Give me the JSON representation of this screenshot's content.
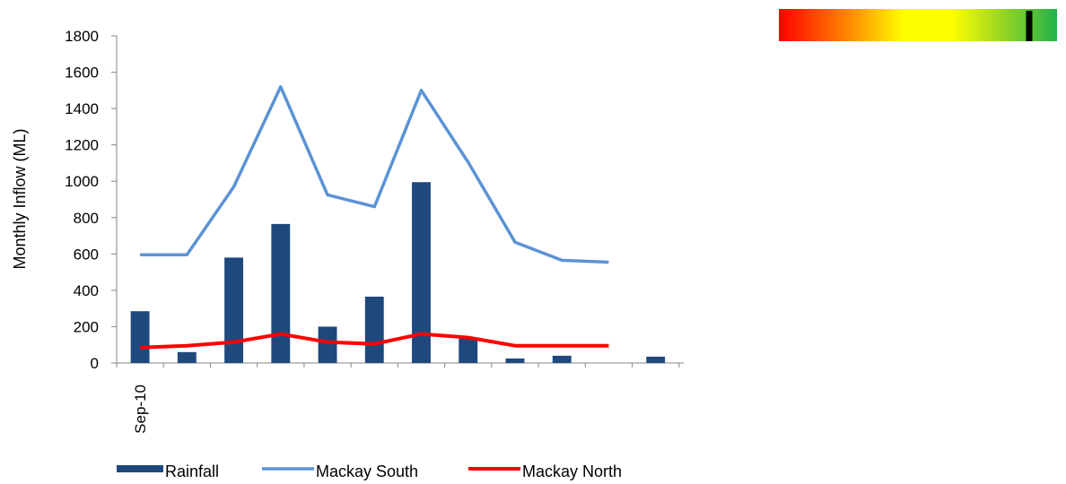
{
  "chart_data": {
    "type": "bar",
    "ylabel": "Monthly Inflow (ML)",
    "ylim": [
      0,
      1800
    ],
    "yticks": [
      0,
      200,
      400,
      600,
      800,
      1000,
      1200,
      1400,
      1600,
      1800
    ],
    "x_tick_labels": [
      "Sep-10"
    ],
    "categories_count": 12,
    "series": [
      {
        "name": "Rainfall",
        "kind": "bar",
        "color": "#1F497D",
        "values": [
          285,
          60,
          580,
          765,
          200,
          365,
          995,
          140,
          25,
          40,
          null,
          35
        ]
      },
      {
        "name": "Mackay South",
        "kind": "line",
        "color": "#5B93D5",
        "values": [
          595,
          595,
          970,
          1520,
          925,
          860,
          1500,
          1105,
          665,
          565,
          555,
          null
        ]
      },
      {
        "name": "Mackay North",
        "kind": "line",
        "color": "#FF0000",
        "values": [
          85,
          95,
          115,
          160,
          115,
          105,
          160,
          140,
          95,
          95,
          95,
          null
        ]
      }
    ],
    "grid": false,
    "legend_position": "bottom"
  },
  "indicator": {
    "colors": [
      "#FF0000",
      "#FF9900",
      "#FFFF00",
      "#FFFF00",
      "#22B14C"
    ],
    "marker_level": 0.9
  }
}
